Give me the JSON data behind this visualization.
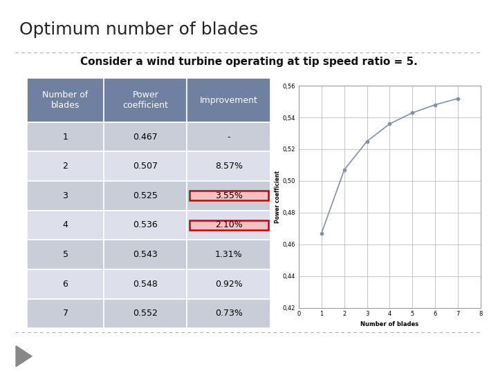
{
  "title": "Optimum number of blades",
  "subtitle": "Consider a wind turbine operating at tip speed ratio = 5.",
  "table": {
    "headers": [
      "Number of\nblades",
      "Power\ncoefficient",
      "Improvement"
    ],
    "rows": [
      [
        "1",
        "0.467",
        "-"
      ],
      [
        "2",
        "0.507",
        "8.57%"
      ],
      [
        "3",
        "0.525",
        "3.55%"
      ],
      [
        "4",
        "0.536",
        "2.10%"
      ],
      [
        "5",
        "0.543",
        "1.31%"
      ],
      [
        "6",
        "0.548",
        "0.92%"
      ],
      [
        "7",
        "0.552",
        "0.73%"
      ]
    ],
    "highlight_rows": [
      2,
      3
    ],
    "highlight_fill": "#f5c0c0",
    "header_bg": "#7080a0",
    "row_bg_odd": "#c8cdd8",
    "row_bg_even": "#dde0ea",
    "highlight_color": "#cc0000",
    "header_text_color": "#ffffff",
    "text_color": "#000000"
  },
  "chart": {
    "x": [
      1,
      2,
      3,
      4,
      5,
      6,
      7
    ],
    "y": [
      0.467,
      0.507,
      0.525,
      0.536,
      0.543,
      0.548,
      0.552
    ],
    "xlim": [
      0,
      8
    ],
    "ylim": [
      0.42,
      0.56
    ],
    "yticks": [
      0.42,
      0.44,
      0.46,
      0.48,
      0.5,
      0.52,
      0.54,
      0.56
    ],
    "xticks": [
      0,
      1,
      2,
      3,
      4,
      5,
      6,
      7,
      8
    ],
    "xlabel": "Number of blades",
    "ylabel": "Power coefficient",
    "line_color": "#8090aa",
    "marker": "o",
    "marker_size": 3,
    "line_width": 1.2
  },
  "bg_color": "#ffffff",
  "title_fontsize": 18,
  "subtitle_fontsize": 11,
  "table_fontsize": 9,
  "footer_dashes_color": "#aaaaaa"
}
